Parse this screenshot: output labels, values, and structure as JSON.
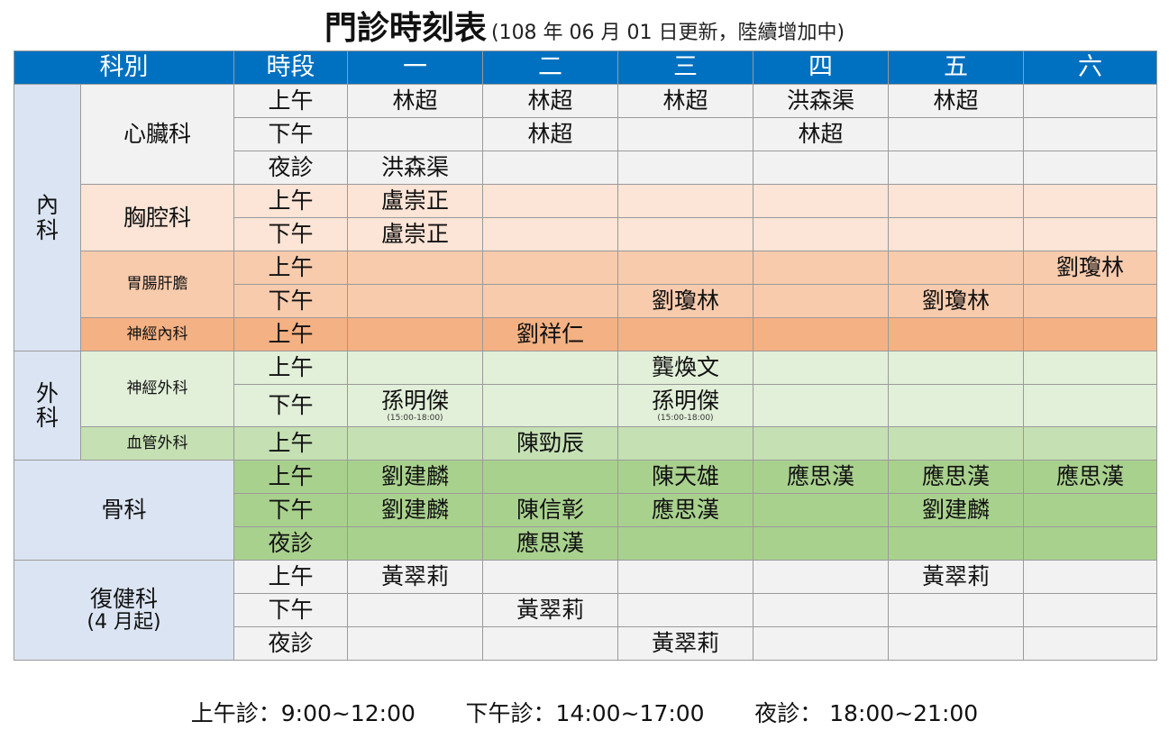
{
  "title": {
    "main": "門診時刻表",
    "note": "(108 年 06 月 01 日更新，陸續增加中)"
  },
  "header": [
    "科別",
    "時段",
    "一",
    "二",
    "三",
    "四",
    "五",
    "六"
  ],
  "categories": {
    "internal": [
      "內",
      "科"
    ],
    "surgery": [
      "外",
      "科"
    ]
  },
  "departments": {
    "cardiology": "心臟科",
    "chest": "胸腔科",
    "gi": "胃腸肝膽",
    "neurology": "神經內科",
    "neurosurgery": "神經外科",
    "vascular": "血管外科",
    "orthopedics": "骨科",
    "rehab": [
      "復健科",
      "(4 月起)"
    ]
  },
  "rows": [
    {
      "slot": "上午",
      "days": [
        "林超",
        "林超",
        "林超",
        "洪森渠",
        "林超",
        ""
      ]
    },
    {
      "slot": "下午",
      "days": [
        "",
        "林超",
        "",
        "林超",
        "",
        ""
      ]
    },
    {
      "slot": "夜診",
      "days": [
        "洪森渠",
        "",
        "",
        "",
        "",
        ""
      ]
    },
    {
      "slot": "上午",
      "days": [
        "盧崇正",
        "",
        "",
        "",
        "",
        ""
      ]
    },
    {
      "slot": "下午",
      "days": [
        "盧崇正",
        "",
        "",
        "",
        "",
        ""
      ]
    },
    {
      "slot": "上午",
      "days": [
        "",
        "",
        "",
        "",
        "",
        "劉瓊林"
      ]
    },
    {
      "slot": "下午",
      "days": [
        "",
        "",
        "劉瓊林",
        "",
        "劉瓊林",
        ""
      ]
    },
    {
      "slot": "上午",
      "days": [
        "",
        "劉祥仁",
        "",
        "",
        "",
        ""
      ]
    },
    {
      "slot": "上午",
      "days": [
        "",
        "",
        "龔煥文",
        "",
        "",
        ""
      ]
    },
    {
      "slot": "下午",
      "days": [
        "孫明傑",
        "",
        "孫明傑",
        "",
        "",
        ""
      ],
      "notes": [
        "(15:00-18:00)",
        "",
        "(15:00-18:00)",
        "",
        "",
        ""
      ]
    },
    {
      "slot": "上午",
      "days": [
        "",
        "陳勁辰",
        "",
        "",
        "",
        ""
      ]
    },
    {
      "slot": "上午",
      "days": [
        "劉建麟",
        "",
        "陳天雄",
        "應思漢",
        "應思漢",
        "應思漢"
      ]
    },
    {
      "slot": "下午",
      "days": [
        "劉建麟",
        "陳信彰",
        "應思漢",
        "",
        "劉建麟",
        ""
      ]
    },
    {
      "slot": "夜診",
      "days": [
        "",
        "應思漢",
        "",
        "",
        "",
        ""
      ]
    },
    {
      "slot": "上午",
      "days": [
        "黃翠莉",
        "",
        "",
        "",
        "黃翠莉",
        ""
      ]
    },
    {
      "slot": "下午",
      "days": [
        "",
        "黃翠莉",
        "",
        "",
        "",
        ""
      ]
    },
    {
      "slot": "夜診",
      "days": [
        "",
        "",
        "黃翠莉",
        "",
        "",
        ""
      ]
    }
  ],
  "footer": "上午診：9:00~12:00       下午診：14:00~17:00       夜診： 18:00~21:00"
}
